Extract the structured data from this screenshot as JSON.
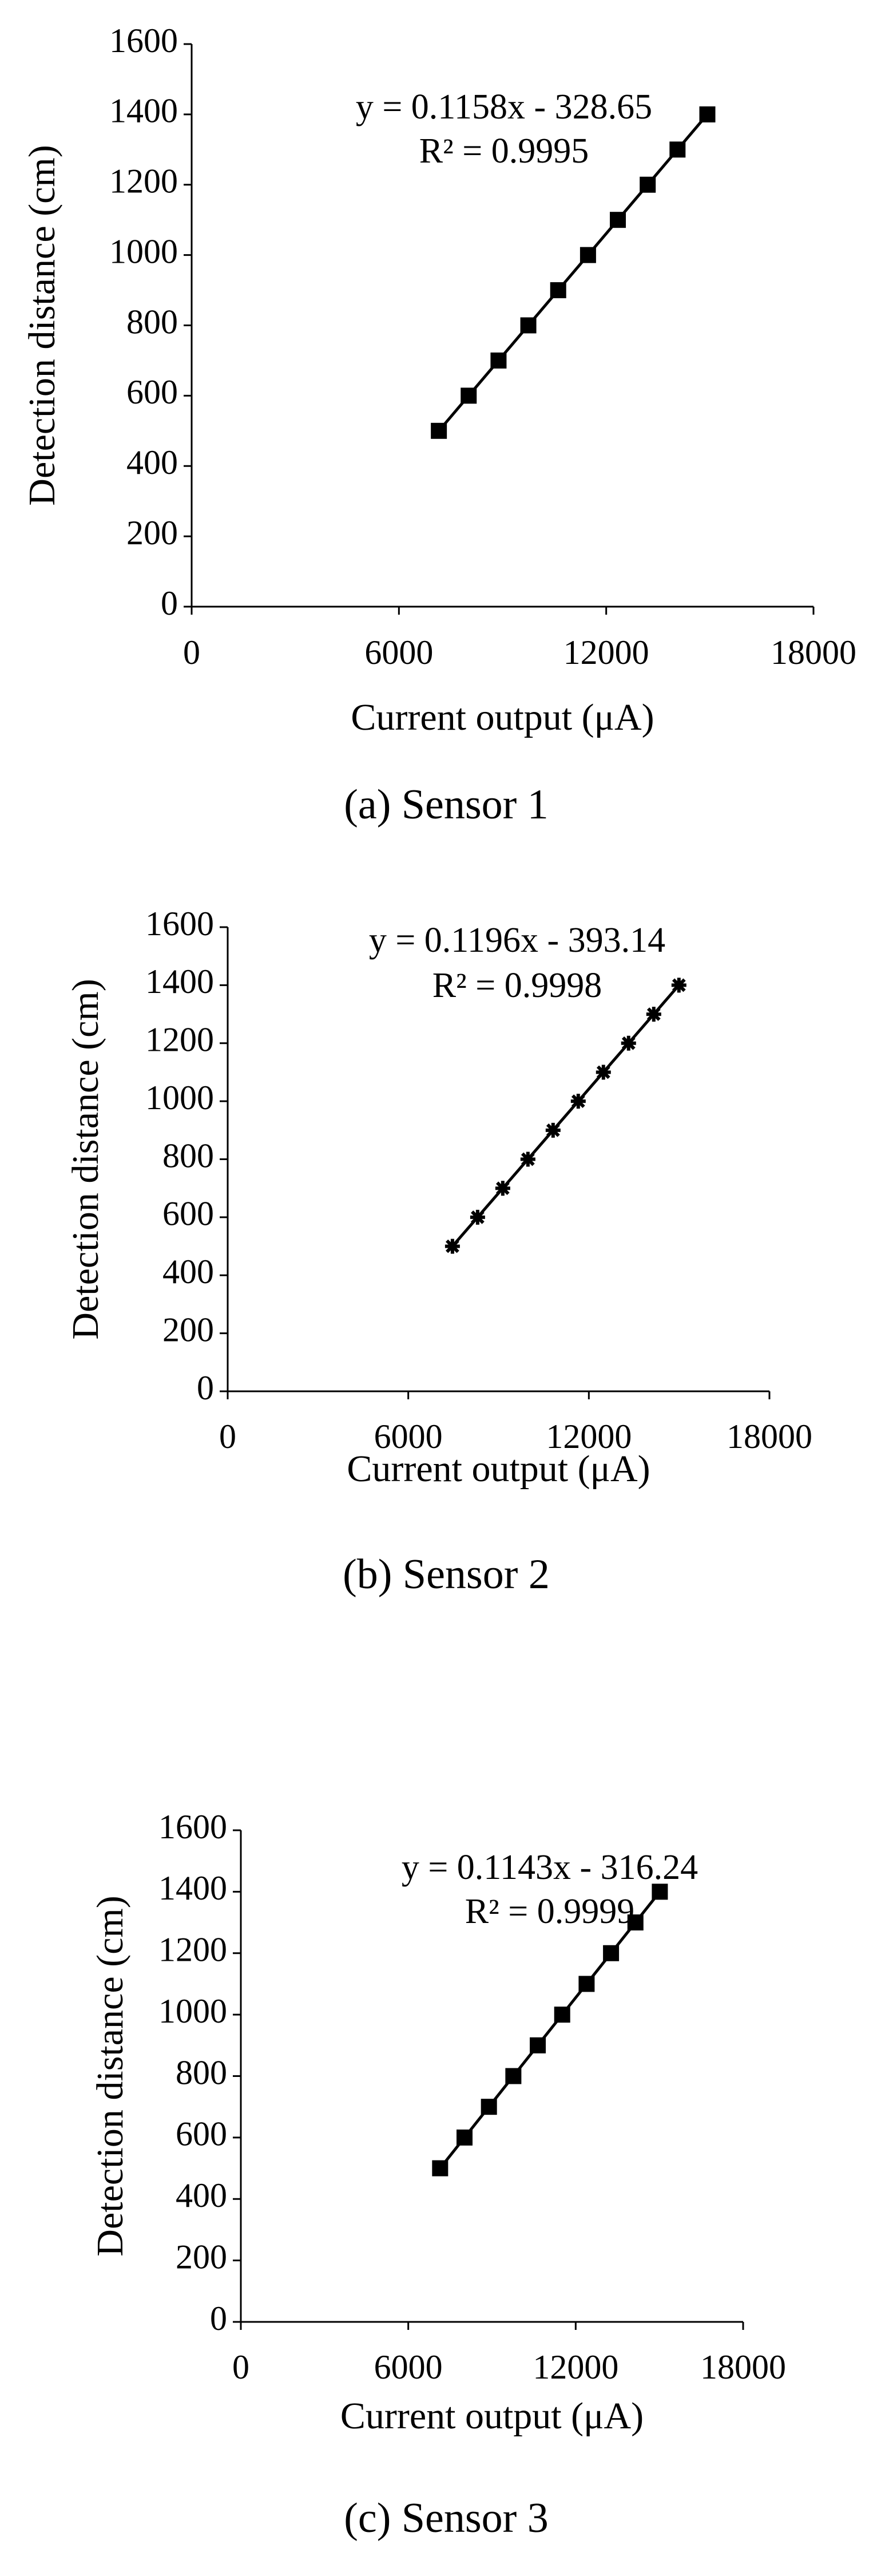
{
  "chart_data": [
    {
      "type": "scatter",
      "caption": "(a) Sensor 1",
      "x_label": "Current output (μA)",
      "y_label": "Detection distance (cm)",
      "annotations": [
        "y = 0.1158x - 328.65",
        "R² = 0.9995"
      ],
      "x": [
        7156,
        8019,
        8883,
        9746,
        10610,
        11474,
        12337,
        13201,
        14064,
        14928
      ],
      "values": [
        500,
        600,
        700,
        800,
        900,
        1000,
        1100,
        1200,
        1300,
        1400
      ],
      "color": "#000000",
      "marker": "square",
      "trendline": true,
      "xlim": [
        0,
        18000
      ],
      "xticks": [
        0,
        6000,
        12000,
        18000
      ],
      "ylim": [
        0,
        1600
      ],
      "yticks": [
        0,
        200,
        400,
        600,
        800,
        1000,
        1200,
        1400,
        1600
      ]
    },
    {
      "type": "scatter",
      "caption": "(b) Sensor 2",
      "x_label": "Current output (μA)",
      "y_label": "Detection distance (cm)",
      "annotations": [
        "y = 0.1196x - 393.14",
        "R² = 0.9998"
      ],
      "x": [
        7468,
        8304,
        9140,
        9976,
        10812,
        11648,
        12484,
        13320,
        14157,
        14993
      ],
      "values": [
        500,
        600,
        700,
        800,
        900,
        1000,
        1100,
        1200,
        1300,
        1400
      ],
      "color": "#000000",
      "marker": "asterisk",
      "trendline": true,
      "xlim": [
        0,
        18000
      ],
      "xticks": [
        0,
        6000,
        12000,
        18000
      ],
      "ylim": [
        0,
        1600
      ],
      "yticks": [
        0,
        200,
        400,
        600,
        800,
        1000,
        1200,
        1400,
        1600
      ]
    },
    {
      "type": "scatter",
      "caption": "(c) Sensor 3",
      "x_label": "Current output (μA)",
      "y_label": "Detection distance (cm)",
      "annotations": [
        "y = 0.1143x - 316.24",
        "R² = 0.9999"
      ],
      "x": [
        7141,
        8016,
        8891,
        9766,
        10641,
        11516,
        12391,
        13266,
        14141,
        15015
      ],
      "values": [
        500,
        600,
        700,
        800,
        900,
        1000,
        1100,
        1200,
        1300,
        1400
      ],
      "color": "#000000",
      "marker": "square",
      "trendline": true,
      "xlim": [
        0,
        18000
      ],
      "xticks": [
        0,
        6000,
        12000,
        18000
      ],
      "ylim": [
        0,
        1600
      ],
      "yticks": [
        0,
        200,
        400,
        600,
        800,
        1000,
        1200,
        1400,
        1600
      ]
    }
  ]
}
